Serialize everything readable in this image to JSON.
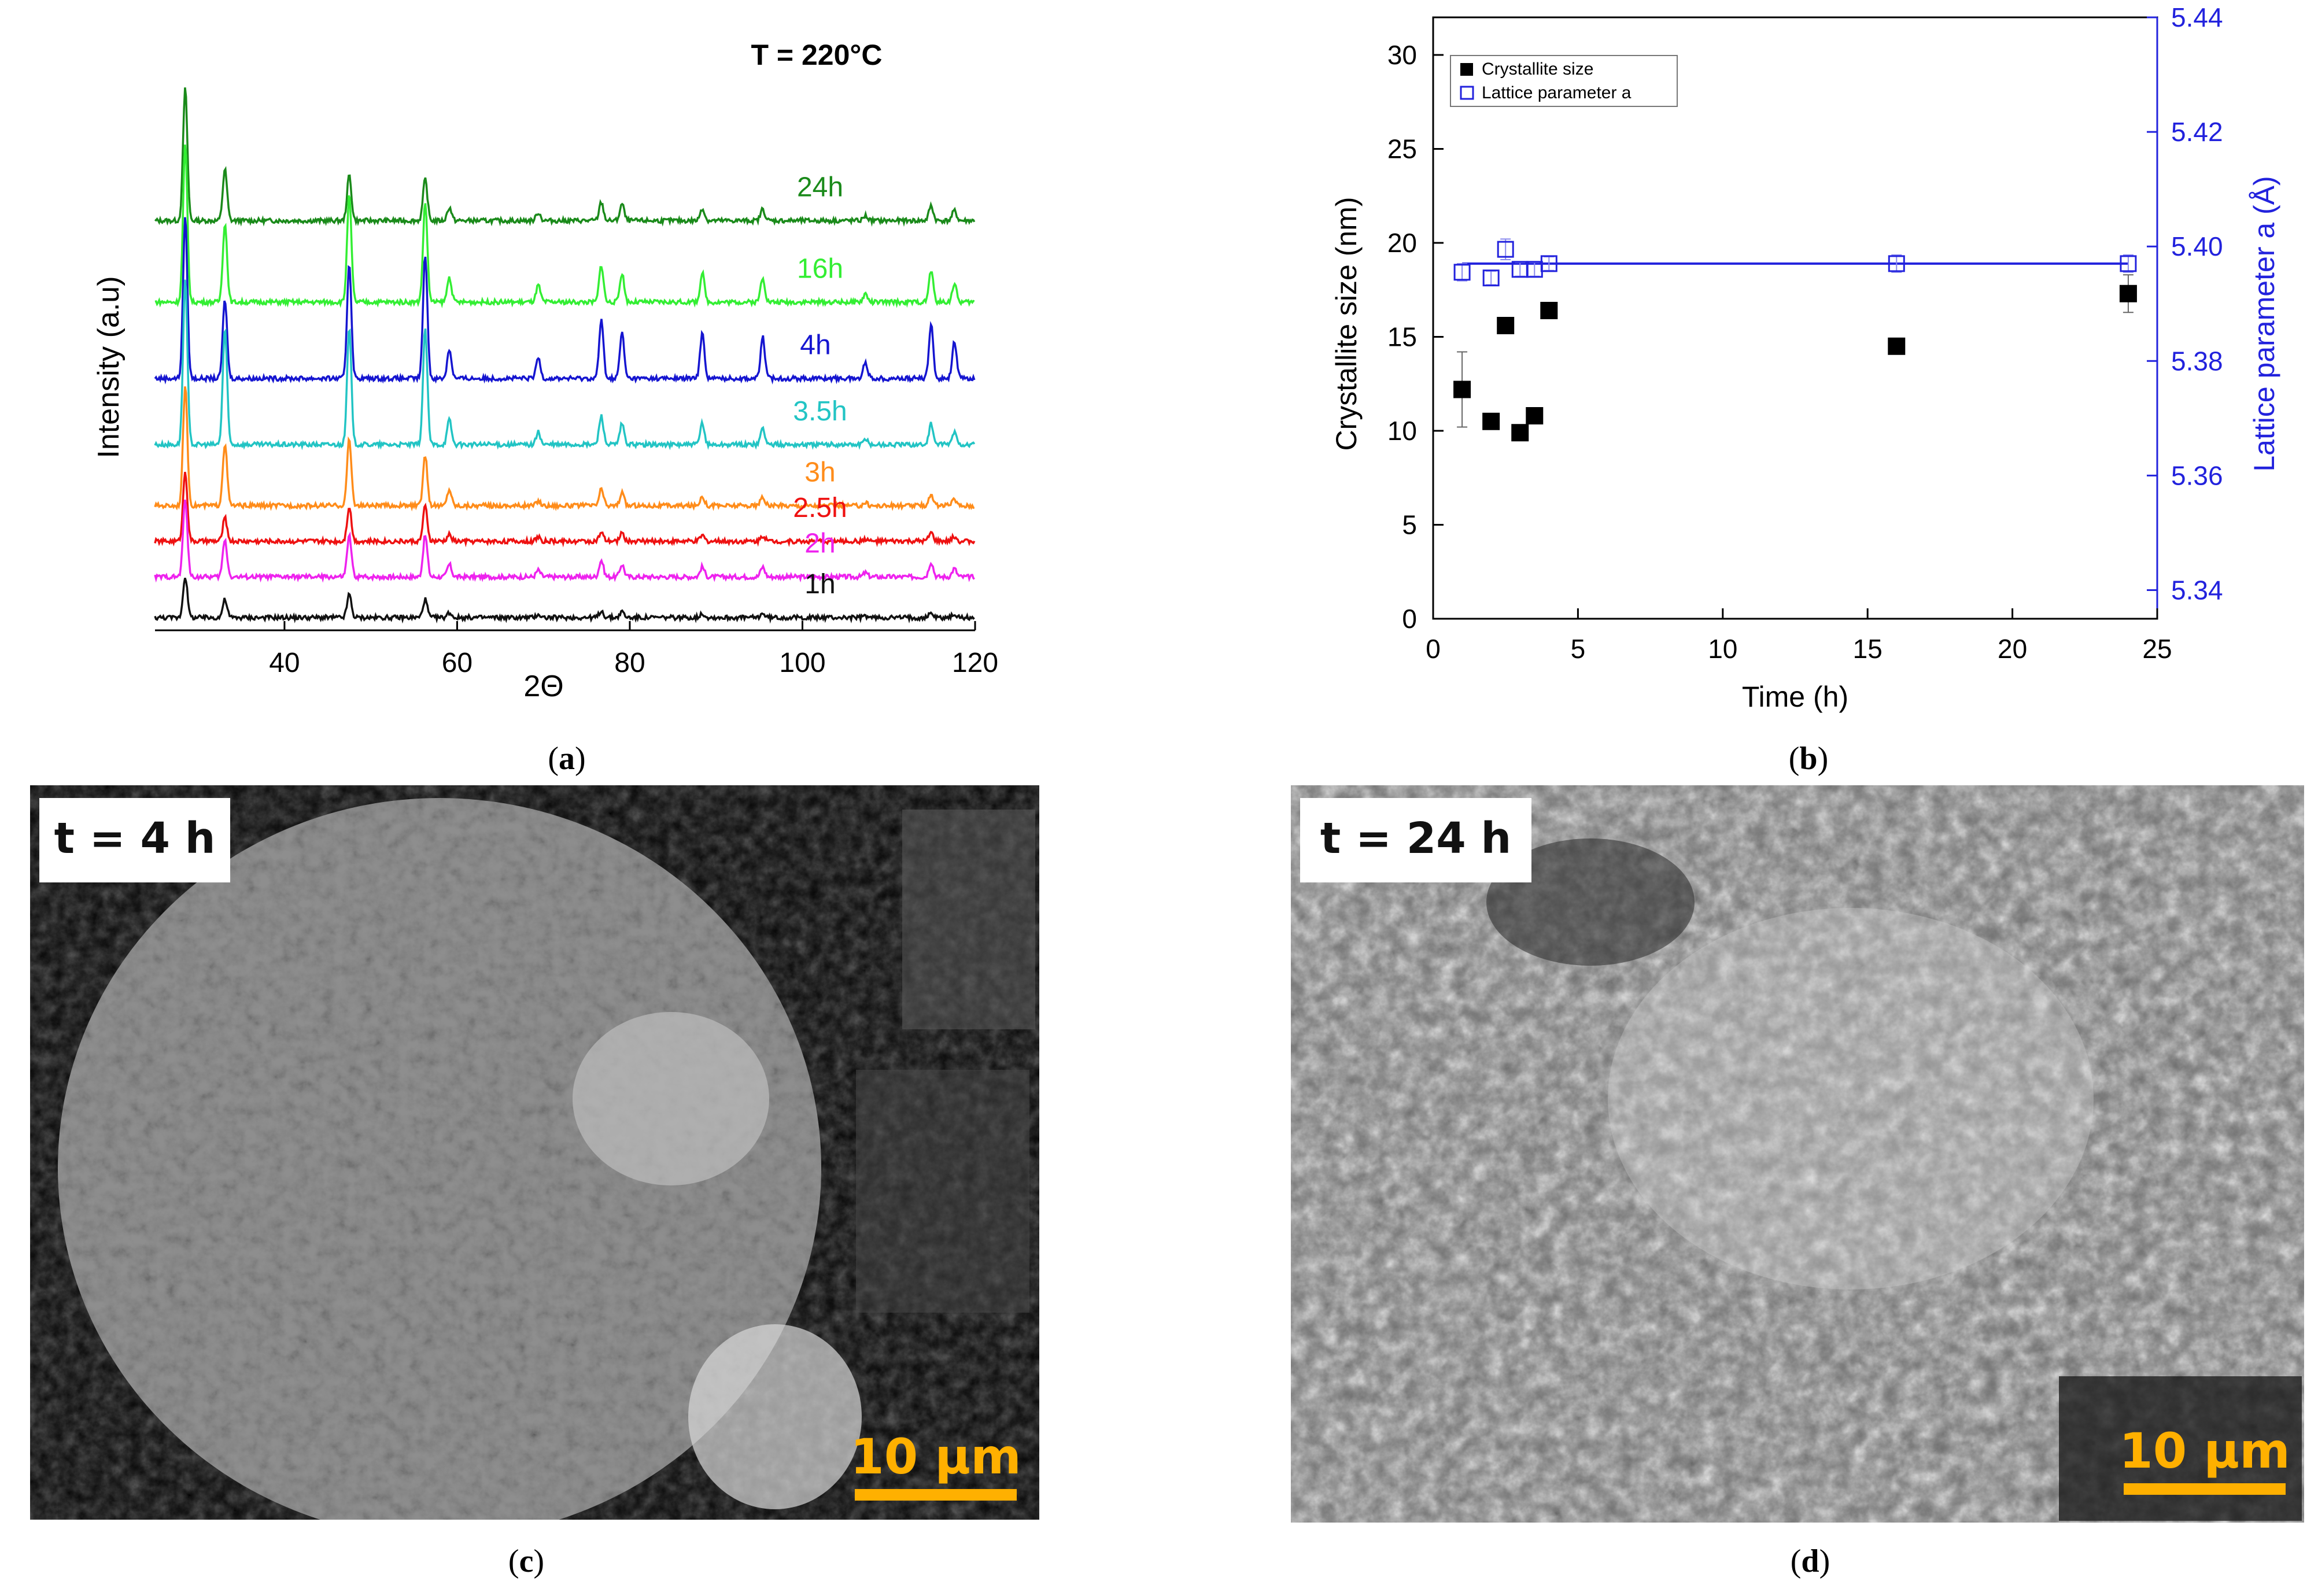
{
  "colors": {
    "c24h": "#1a8a1a",
    "c16h": "#33ee33",
    "c4h": "#1515d0",
    "c35h": "#22c4c4",
    "c3h": "#ff8c1a",
    "c25h": "#ee1111",
    "c2h": "#ee22ee",
    "c1h": "#111111",
    "right_axis": "#2222dd",
    "scalebar": "#ffb000"
  },
  "panels": {
    "a": {
      "caption_open": "(",
      "caption_letter": "a",
      "caption_close": ")"
    },
    "b": {
      "caption_open": "(",
      "caption_letter": "b",
      "caption_close": ")"
    },
    "c": {
      "caption_open": "(",
      "caption_letter": "c",
      "caption_close": ")",
      "label": "t = 4 h",
      "scalebar": "10 µm"
    },
    "d": {
      "caption_open": "(",
      "caption_letter": "d",
      "caption_close": ")",
      "label": "t = 24 h",
      "scalebar": "10 µm"
    }
  },
  "chart_data": [
    {
      "type": "line",
      "panel": "a",
      "title": "T = 220°C",
      "xlabel": "2Θ",
      "ylabel": "Intensity (a.u)",
      "xlim": [
        25,
        120
      ],
      "xticks": [
        40,
        60,
        80,
        100,
        120
      ],
      "yticks": [],
      "stacked": true,
      "order": [
        "24h",
        "16h",
        "4h",
        "3.5h",
        "3h",
        "2.5h",
        "2h",
        "1h"
      ],
      "peaks_2theta": [
        28.5,
        33.1,
        47.5,
        56.3,
        59.1,
        69.4,
        76.7,
        79.1,
        88.4,
        95.4,
        107.3,
        114.9,
        117.6
      ],
      "series": [
        {
          "name": "24h",
          "color_key": "c24h",
          "baseline": 0.78,
          "scale": 1.0,
          "amps": [
            1.6,
            0.62,
            0.55,
            0.5,
            0.16,
            0.1,
            0.22,
            0.2,
            0.15,
            0.14,
            0.06,
            0.18,
            0.12
          ]
        },
        {
          "name": "16h",
          "color_key": "c16h",
          "baseline": 0.62,
          "scale": 1.0,
          "amps": [
            1.9,
            0.95,
            1.3,
            1.2,
            0.3,
            0.2,
            0.45,
            0.35,
            0.35,
            0.3,
            0.1,
            0.38,
            0.22
          ]
        },
        {
          "name": "4h",
          "color_key": "c4h",
          "baseline": 0.47,
          "scale": 1.0,
          "amps": [
            1.95,
            0.95,
            1.4,
            1.5,
            0.35,
            0.25,
            0.7,
            0.55,
            0.55,
            0.5,
            0.2,
            0.65,
            0.45
          ]
        },
        {
          "name": "3.5h",
          "color_key": "c35h",
          "baseline": 0.34,
          "scale": 1.0,
          "amps": [
            2.0,
            1.4,
            1.4,
            1.4,
            0.3,
            0.15,
            0.35,
            0.25,
            0.25,
            0.2,
            0.06,
            0.25,
            0.15
          ]
        },
        {
          "name": "3h",
          "color_key": "c3h",
          "baseline": 0.22,
          "scale": 1.0,
          "amps": [
            1.45,
            0.75,
            0.8,
            0.6,
            0.2,
            0.06,
            0.2,
            0.15,
            0.12,
            0.1,
            0.04,
            0.14,
            0.08
          ]
        },
        {
          "name": "2.5h",
          "color_key": "c25h",
          "baseline": 0.15,
          "scale": 1.0,
          "amps": [
            0.85,
            0.28,
            0.42,
            0.42,
            0.08,
            0.05,
            0.1,
            0.1,
            0.07,
            0.07,
            0.03,
            0.1,
            0.06
          ]
        },
        {
          "name": "2h",
          "color_key": "c2h",
          "baseline": 0.08,
          "scale": 1.0,
          "amps": [
            0.95,
            0.45,
            0.5,
            0.5,
            0.15,
            0.08,
            0.2,
            0.15,
            0.12,
            0.12,
            0.05,
            0.18,
            0.1
          ]
        },
        {
          "name": "1h",
          "color_key": "c1h",
          "baseline": 0.0,
          "scale": 1.0,
          "amps": [
            0.5,
            0.22,
            0.28,
            0.22,
            0.06,
            0.04,
            0.08,
            0.07,
            0.05,
            0.05,
            0.02,
            0.06,
            0.04
          ]
        }
      ]
    },
    {
      "type": "scatter",
      "panel": "b",
      "xlabel": "Time (h)",
      "ylabel": "Crystallite size (nm)",
      "ylabel_right": "Lattice parameter a (Å)",
      "xlim": [
        0,
        25
      ],
      "ylim": [
        0,
        32
      ],
      "ylim_right": [
        5.335,
        5.44
      ],
      "xticks": [
        0,
        5,
        10,
        15,
        20,
        25
      ],
      "yticks": [
        0,
        5,
        10,
        15,
        20,
        25,
        30
      ],
      "yticks_right": [
        5.34,
        5.36,
        5.38,
        5.4,
        5.42,
        5.44
      ],
      "legend_position": "top-left",
      "series": [
        {
          "name": "Crystallite size",
          "axis": "left",
          "marker": "filled-square",
          "color": "#000000",
          "x": [
            1,
            2,
            2.5,
            3,
            3.5,
            4,
            16,
            24
          ],
          "y": [
            12.2,
            10.5,
            15.6,
            9.9,
            10.8,
            16.4,
            14.5,
            17.3
          ],
          "err": [
            2.0,
            0.4,
            0.4,
            0.4,
            0.4,
            0.4,
            0.3,
            1.0
          ]
        },
        {
          "name": "Lattice parameter a",
          "axis": "right",
          "marker": "open-square",
          "color": "#2222dd",
          "x": [
            1,
            2,
            2.5,
            3,
            3.5,
            4,
            16,
            24
          ],
          "y": [
            5.3955,
            5.3945,
            5.3995,
            5.396,
            5.396,
            5.397,
            5.397,
            5.397
          ],
          "err": [
            0.0015,
            0.0012,
            0.0018,
            0.0012,
            0.0012,
            0.0012,
            0.0015,
            0.0015
          ]
        }
      ],
      "fit_line": {
        "axis": "right",
        "y": 5.397,
        "x_range": [
          1,
          24
        ]
      }
    }
  ]
}
